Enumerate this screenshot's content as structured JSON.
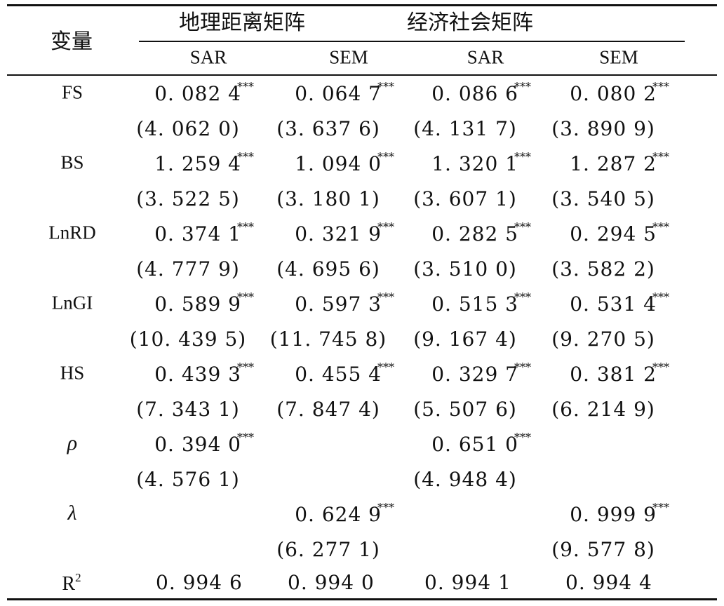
{
  "header": {
    "variable_label": "变量",
    "group1": "地理距离矩阵",
    "group2": "经济社会矩阵",
    "subheaders": [
      "SAR",
      "SEM",
      "SAR",
      "SEM"
    ]
  },
  "rows": [
    {
      "name": "FS",
      "greek": false,
      "coef": [
        "0. 082 4",
        "0. 064 7",
        "0. 086 6",
        "0. 080 2"
      ],
      "stars": [
        "***",
        "***",
        "***",
        "***"
      ],
      "tstat": [
        "(4. 062 0)",
        "(3. 637 6)",
        "(4. 131 7)",
        "(3. 890 9)"
      ]
    },
    {
      "name": "BS",
      "greek": false,
      "coef": [
        "1. 259 4",
        "1. 094 0",
        "1. 320 1",
        "1. 287 2"
      ],
      "stars": [
        "***",
        "***",
        "***",
        "***"
      ],
      "tstat": [
        "(3. 522 5)",
        "(3. 180 1)",
        "(3. 607 1)",
        "(3. 540 5)"
      ]
    },
    {
      "name": "LnRD",
      "greek": false,
      "coef": [
        "0. 374 1",
        "0. 321 9",
        "0. 282 5",
        "0. 294 5"
      ],
      "stars": [
        "***",
        "***",
        "***",
        "***"
      ],
      "tstat": [
        "(4. 777 9)",
        "(4. 695 6)",
        "(3. 510 0)",
        "(3. 582 2)"
      ]
    },
    {
      "name": "LnGI",
      "greek": false,
      "coef": [
        "0. 589 9",
        "0. 597 3",
        "0. 515 3",
        "0. 531 4"
      ],
      "stars": [
        "***",
        "***",
        "***",
        "***"
      ],
      "tstat": [
        "(10. 439 5)",
        "(11. 745 8)",
        "(9. 167 4)",
        "(9. 270 5)"
      ]
    },
    {
      "name": "HS",
      "greek": false,
      "coef": [
        "0. 439 3",
        "0. 455 4",
        "0. 329 7",
        "0. 381 2"
      ],
      "stars": [
        "***",
        "***",
        "***",
        "***"
      ],
      "tstat": [
        "(7. 343 1)",
        "(7. 847 4)",
        "(5. 507 6)",
        "(6. 214 9)"
      ]
    },
    {
      "name": "ρ",
      "greek": true,
      "coef": [
        "0. 394 0",
        "",
        "0. 651 0",
        ""
      ],
      "stars": [
        "***",
        "",
        "***",
        ""
      ],
      "tstat": [
        "(4. 576 1)",
        "",
        "(4. 948 4)",
        ""
      ]
    },
    {
      "name": "λ",
      "greek": true,
      "coef": [
        "",
        "0. 624 9",
        "",
        "0. 999 9"
      ],
      "stars": [
        "",
        "***",
        "",
        "***"
      ],
      "tstat": [
        "",
        "(6. 277 1)",
        "",
        "(9. 577 8)"
      ]
    }
  ],
  "r2": {
    "label": "R",
    "superscript": "2",
    "values": [
      "0. 994 6",
      "0. 994 0",
      "0. 994 1",
      "0. 994 4"
    ]
  }
}
